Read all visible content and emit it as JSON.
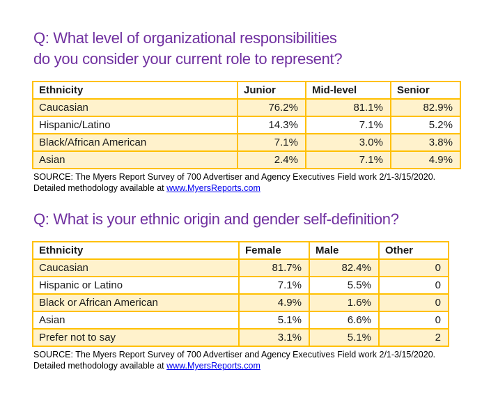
{
  "headings": {
    "q1_line1": "Q: What level of organizational responsibilities",
    "q1_line2": "do you consider your current role to represent?",
    "q2": "Q: What is your ethnic origin and gender self-definition?"
  },
  "colors": {
    "heading_purple": "#7030A0",
    "table_border_gold": "#FFC000",
    "row_highlight_cream": "#FFF2CC",
    "link_blue": "#0000EE"
  },
  "tables": [
    {
      "headers": [
        "Ethnicity",
        "Junior",
        "Mid-level",
        "Senior"
      ],
      "rows": [
        [
          "Caucasian",
          "76.2%",
          "81.1%",
          "82.9%"
        ],
        [
          "Hispanic/Latino",
          "14.3%",
          "7.1%",
          "5.2%"
        ],
        [
          "Black/African American",
          "7.1%",
          "3.0%",
          "3.8%"
        ],
        [
          "Asian",
          "2.4%",
          "7.1%",
          "4.9%"
        ]
      ]
    },
    {
      "headers": [
        "Ethnicity",
        "Female",
        "Male",
        "Other"
      ],
      "rows": [
        [
          "Caucasian",
          "81.7%",
          "82.4%",
          "0"
        ],
        [
          "Hispanic or Latino",
          "7.1%",
          "5.5%",
          "0"
        ],
        [
          "Black or African American",
          "4.9%",
          "1.6%",
          "0"
        ],
        [
          "Asian",
          "5.1%",
          "6.6%",
          "0"
        ],
        [
          "Prefer not to say",
          "3.1%",
          "5.1%",
          "2"
        ]
      ]
    }
  ],
  "source": {
    "line1": "SOURCE: The Myers Report Survey of 700 Advertiser and Agency Executives Field work 2/1-3/15/2020.",
    "line2_prefix": "Detailed methodology available at ",
    "link_text": "www.MyersReports.com"
  }
}
